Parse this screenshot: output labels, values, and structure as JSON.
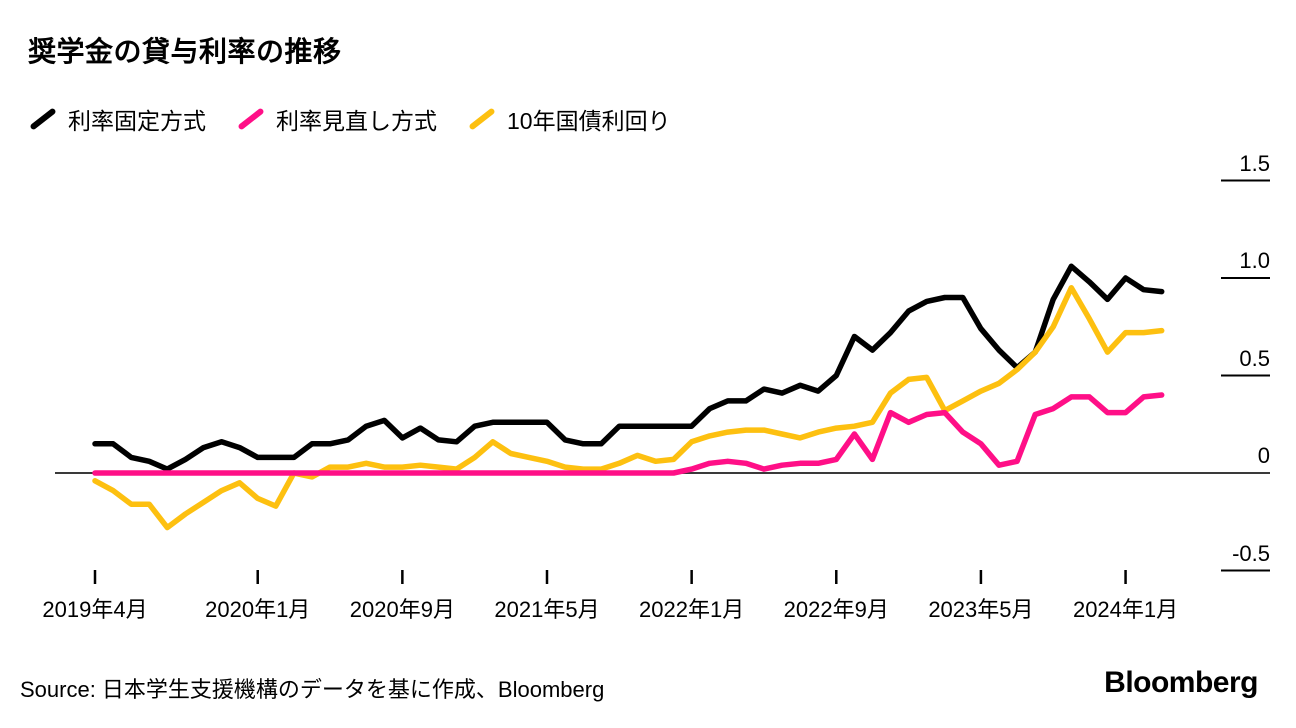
{
  "title": "奨学金の貸与利率の推移",
  "legend": {
    "items": [
      {
        "label": "利率固定方式",
        "color": "#000000"
      },
      {
        "label": "利率見直し方式",
        "color": "#ff0f87"
      },
      {
        "label": "10年国債利回り",
        "color": "#fdc010"
      }
    ]
  },
  "y_axis": {
    "labels": [
      "1.5",
      "1.0",
      "0.5",
      "0",
      "-0.5"
    ],
    "values": [
      1.5,
      1.0,
      0.5,
      0,
      -0.5
    ]
  },
  "x_axis": {
    "ticks": [
      {
        "label": "2019年4月",
        "month": 0
      },
      {
        "label": "2020年1月",
        "month": 9
      },
      {
        "label": "2020年9月",
        "month": 17
      },
      {
        "label": "2021年5月",
        "month": 25
      },
      {
        "label": "2022年1月",
        "month": 33
      },
      {
        "label": "2022年9月",
        "month": 41
      },
      {
        "label": "2023年5月",
        "month": 49
      },
      {
        "label": "2024年1月",
        "month": 57
      }
    ]
  },
  "footer": {
    "source": "Source: 日本学生支援機構のデータを基に作成、Bloomberg",
    "logo": "Bloomberg"
  },
  "chart_data": {
    "type": "line",
    "title": "奨学金の貸与利率の推移",
    "ylim": [
      -0.5,
      1.5
    ],
    "grid": "right-ticks-only, zero-baseline",
    "legend_position": "top-left",
    "categories": [
      "2019-04",
      "2019-05",
      "2019-06",
      "2019-07",
      "2019-08",
      "2019-09",
      "2019-10",
      "2019-11",
      "2019-12",
      "2020-01",
      "2020-02",
      "2020-03",
      "2020-04",
      "2020-05",
      "2020-06",
      "2020-07",
      "2020-08",
      "2020-09",
      "2020-10",
      "2020-11",
      "2020-12",
      "2021-01",
      "2021-02",
      "2021-03",
      "2021-04",
      "2021-05",
      "2021-06",
      "2021-07",
      "2021-08",
      "2021-09",
      "2021-10",
      "2021-11",
      "2021-12",
      "2022-01",
      "2022-02",
      "2022-03",
      "2022-04",
      "2022-05",
      "2022-06",
      "2022-07",
      "2022-08",
      "2022-09",
      "2022-10",
      "2022-11",
      "2022-12",
      "2023-01",
      "2023-02",
      "2023-03",
      "2023-04",
      "2023-05",
      "2023-06",
      "2023-07",
      "2023-08",
      "2023-09",
      "2023-10",
      "2023-11",
      "2023-12",
      "2024-01",
      "2024-02",
      "2024-03"
    ],
    "series": [
      {
        "name": "利率固定方式",
        "color": "#000000",
        "values": [
          0.15,
          0.15,
          0.08,
          0.06,
          0.02,
          0.07,
          0.13,
          0.16,
          0.13,
          0.08,
          0.08,
          0.08,
          0.15,
          0.15,
          0.17,
          0.24,
          0.27,
          0.18,
          0.23,
          0.17,
          0.16,
          0.24,
          0.26,
          0.26,
          0.26,
          0.26,
          0.17,
          0.15,
          0.15,
          0.24,
          0.24,
          0.24,
          0.24,
          0.24,
          0.33,
          0.37,
          0.37,
          0.43,
          0.41,
          0.45,
          0.42,
          0.5,
          0.7,
          0.63,
          0.72,
          0.83,
          0.88,
          0.9,
          0.9,
          0.74,
          0.63,
          0.54,
          0.62,
          0.89,
          1.06,
          0.98,
          0.89,
          1.0,
          0.94,
          0.93
        ]
      },
      {
        "name": "利率見直し方式",
        "color": "#ff0f87",
        "values": [
          0.0,
          0.0,
          0.0,
          0.0,
          0.0,
          0.0,
          0.0,
          0.0,
          0.0,
          0.0,
          0.0,
          0.0,
          0.0,
          0.0,
          0.0,
          0.0,
          0.0,
          0.0,
          0.0,
          0.0,
          0.0,
          0.0,
          0.0,
          0.0,
          0.0,
          0.0,
          0.0,
          0.0,
          0.0,
          0.0,
          0.0,
          0.0,
          0.0,
          0.02,
          0.05,
          0.06,
          0.05,
          0.02,
          0.04,
          0.05,
          0.05,
          0.07,
          0.2,
          0.07,
          0.31,
          0.26,
          0.3,
          0.31,
          0.21,
          0.15,
          0.04,
          0.06,
          0.3,
          0.33,
          0.39,
          0.39,
          0.31,
          0.31,
          0.39,
          0.4
        ]
      },
      {
        "name": "10年国債利回り",
        "color": "#fdc010",
        "values": [
          -0.04,
          -0.09,
          -0.16,
          -0.16,
          -0.28,
          -0.21,
          -0.15,
          -0.09,
          -0.05,
          -0.13,
          -0.17,
          0.0,
          -0.02,
          0.03,
          0.03,
          0.05,
          0.03,
          0.03,
          0.04,
          0.03,
          0.02,
          0.08,
          0.16,
          0.1,
          0.08,
          0.06,
          0.03,
          0.02,
          0.02,
          0.05,
          0.09,
          0.06,
          0.07,
          0.16,
          0.19,
          0.21,
          0.22,
          0.22,
          0.2,
          0.18,
          0.21,
          0.23,
          0.24,
          0.26,
          0.41,
          0.48,
          0.49,
          0.32,
          0.37,
          0.42,
          0.46,
          0.53,
          0.62,
          0.75,
          0.95,
          0.79,
          0.62,
          0.72,
          0.72,
          0.73
        ]
      }
    ]
  },
  "style": {
    "zero_line_color": "#3a3a3a",
    "tick_color": "#000000",
    "background": "#ffffff"
  }
}
